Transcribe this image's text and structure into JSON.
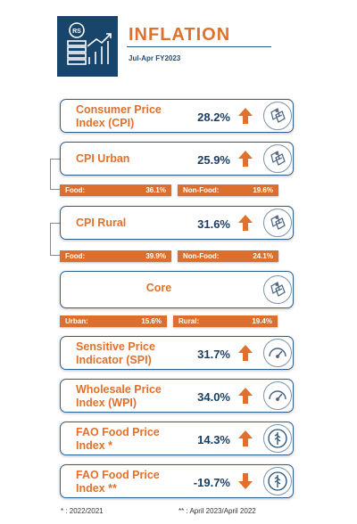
{
  "header": {
    "logo_text": "RS",
    "title": "INFLATION",
    "subtitle": "Jul-Apr FY2023"
  },
  "indicators": [
    {
      "label_line1": "Consumer Price",
      "label_line2": "Index (CPI)",
      "value": "28.2%",
      "direction": "up",
      "icon": "price-tag-icon"
    },
    {
      "label_line1": "CPI Urban",
      "label_line2": "",
      "value": "25.9%",
      "direction": "up",
      "icon": "price-tag-icon",
      "breakdown": {
        "left_label": "Food:",
        "left_value": "36.1%",
        "right_label": "Non-Food:",
        "right_value": "19.6%"
      }
    },
    {
      "label_line1": "CPI Rural",
      "label_line2": "",
      "value": "31.6%",
      "direction": "up",
      "icon": "price-tag-icon",
      "breakdown": {
        "left_label": "Food:",
        "left_value": "39.9%",
        "right_label": "Non-Food:",
        "right_value": "24.1%"
      }
    },
    {
      "label_line1": "Core",
      "label_line2": "",
      "value": "",
      "direction": "",
      "icon": "price-tag-icon",
      "breakdown": {
        "left_label": "Urban:",
        "left_value": "15.6%",
        "right_label": "Rural:",
        "right_value": "19.4%"
      }
    },
    {
      "label_line1": "Sensitive Price",
      "label_line2": "Indicator (SPI)",
      "value": "31.7%",
      "direction": "up",
      "icon": "gauge-icon"
    },
    {
      "label_line1": "Wholesale Price",
      "label_line2": "Index (WPI)",
      "value": "34.0%",
      "direction": "up",
      "icon": "gauge-icon"
    },
    {
      "label_line1": "FAO Food Price",
      "label_line2": "Index *",
      "value": "14.3%",
      "direction": "up",
      "icon": "fao-emblem-icon"
    },
    {
      "label_line1": "FAO Food Price",
      "label_line2": "Index **",
      "value": "-19.7%",
      "direction": "down",
      "icon": "fao-emblem-icon"
    }
  ],
  "footnotes": {
    "left": "* : 2022/2021",
    "right": "** : April 2023/April 2022"
  },
  "colors": {
    "accent": "#e0712c",
    "navy": "#17456b",
    "bar": "#dd6f2e"
  }
}
